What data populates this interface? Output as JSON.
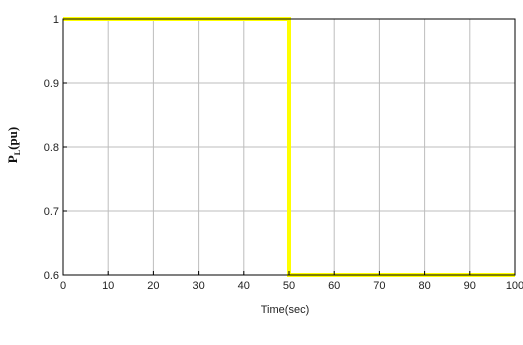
{
  "chart_data": {
    "type": "line",
    "title": "",
    "xlabel": "Time(sec)",
    "ylabel": {
      "main": "P",
      "sub": "L",
      "suffix": "(pu)"
    },
    "xlim": [
      0,
      100
    ],
    "ylim": [
      0.6,
      1.0
    ],
    "x_ticks": [
      0,
      10,
      20,
      30,
      40,
      50,
      60,
      70,
      80,
      90,
      100
    ],
    "y_ticks": [
      0.6,
      0.7,
      0.8,
      0.9,
      1.0
    ],
    "x_tick_labels": [
      "0",
      "10",
      "20",
      "30",
      "40",
      "50",
      "60",
      "70",
      "80",
      "90",
      "100"
    ],
    "y_tick_labels": [
      "0.6",
      "0.7",
      "0.8",
      "0.9",
      "1"
    ],
    "grid": true,
    "series": [
      {
        "color": "#ffff00",
        "x": [
          0,
          50,
          50,
          100
        ],
        "y": [
          1.0,
          1.0,
          0.6,
          0.6
        ]
      }
    ]
  }
}
